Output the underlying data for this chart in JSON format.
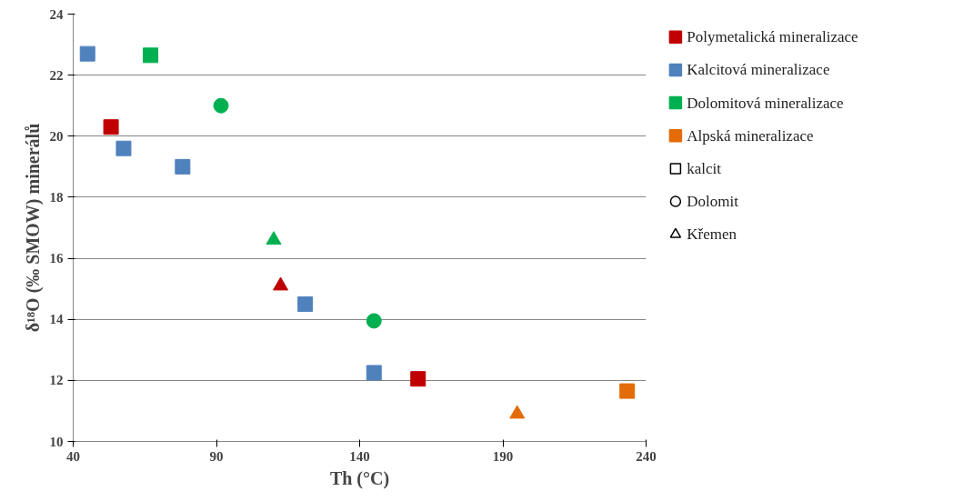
{
  "chart_data": {
    "type": "scatter",
    "xlabel": "Th (°C)",
    "ylabel": "δ¹⁸O (‰ SMOW) minerálů",
    "xlim": [
      40,
      240
    ],
    "xticks": [
      40,
      90,
      140,
      190,
      240
    ],
    "ylim": [
      10,
      24
    ],
    "yticks": [
      10,
      12,
      14,
      16,
      18,
      20,
      22,
      24
    ],
    "grid": "y",
    "legend": "right",
    "series": [
      {
        "name": "Polymetalická mineralizace",
        "color": "#c00000",
        "marker": "square",
        "x": [
          53.2,
          160.4
        ],
        "values": [
          20.3,
          12.05
        ]
      },
      {
        "name": "Kalcitová mineralizace",
        "color": "#4f81bd",
        "marker": "square",
        "x": [
          45,
          57.6,
          78.2,
          121,
          145
        ],
        "values": [
          22.7,
          19.6,
          19.0,
          14.5,
          12.25
        ]
      },
      {
        "name": "Dolomitová mineralizace",
        "color": "#00b050",
        "marker": "square",
        "x": [
          67
        ],
        "values": [
          22.65
        ]
      },
      {
        "name": "Alpská mineralizace",
        "color": "#e36c09",
        "marker": "square",
        "x": [
          233.4
        ],
        "values": [
          11.65
        ]
      },
      {
        "name": "kalcit",
        "color": "#000000",
        "marker": "square"
      },
      {
        "name": "Dolomit",
        "color": "#000000",
        "marker": "circle"
      },
      {
        "name": "Křemen",
        "color": "#000000",
        "marker": "triangle"
      },
      {
        "color": "#c00000",
        "marker": "triangle",
        "x": [
          112.4
        ],
        "values": [
          15.1
        ]
      },
      {
        "color": "#00b050",
        "marker": "circle",
        "x": [
          91.6,
          145
        ],
        "values": [
          21.0,
          13.95
        ]
      },
      {
        "color": "#00b050",
        "marker": "triangle",
        "x": [
          110
        ],
        "values": [
          16.6
        ]
      },
      {
        "color": "#e36c09",
        "marker": "triangle",
        "x": [
          195
        ],
        "values": [
          10.9
        ]
      }
    ]
  }
}
